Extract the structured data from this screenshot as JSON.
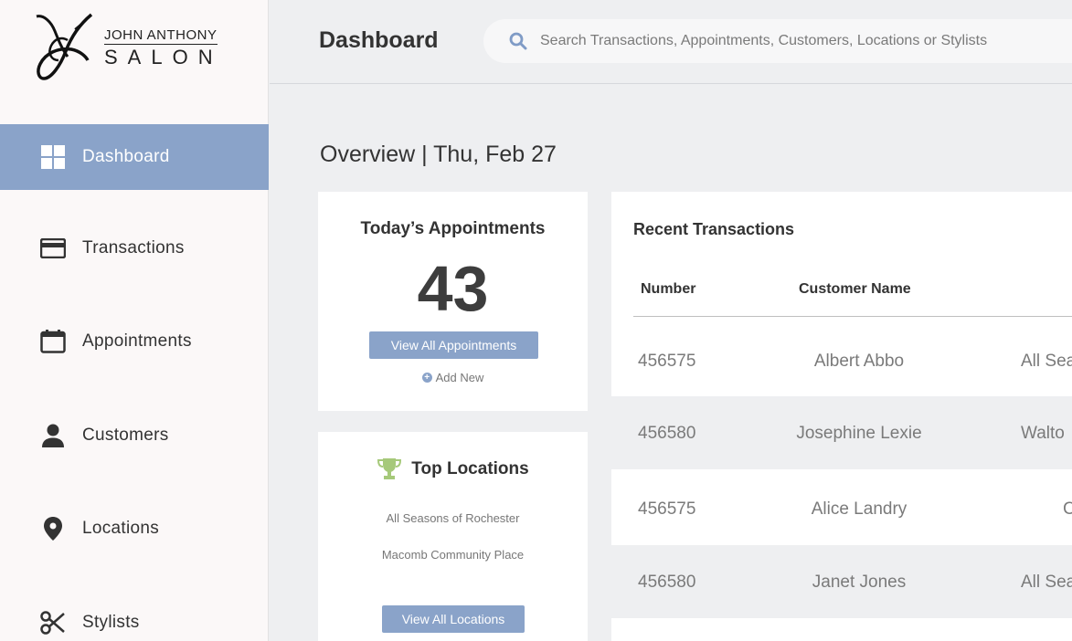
{
  "brand": {
    "line1": "JOHN ANTHONY",
    "line2": "SALON"
  },
  "sidebar": {
    "items": [
      {
        "label": "Dashboard",
        "icon": "grid-icon",
        "active": true
      },
      {
        "label": "Transactions",
        "icon": "credit-card-icon"
      },
      {
        "label": "Appointments",
        "icon": "calendar-icon"
      },
      {
        "label": "Customers",
        "icon": "person-icon"
      },
      {
        "label": "Locations",
        "icon": "map-pin-icon"
      },
      {
        "label": "Stylists",
        "icon": "scissors-icon"
      }
    ]
  },
  "header": {
    "title": "Dashboard",
    "search_placeholder": "Search Transactions, Appointments, Customers, Locations or Stylists"
  },
  "overview": {
    "title": "Overview | Thu, Feb 27"
  },
  "appointments": {
    "title": "Today’s Appointments",
    "count": "43",
    "view_all_label": "View All Appointments",
    "add_new_label": "Add New"
  },
  "top_locations": {
    "title": "Top Locations",
    "items": [
      "All Seasons of Rochester",
      "Macomb Community Place"
    ],
    "view_all_label": "View All Locations"
  },
  "transactions": {
    "title": "Recent Transactions",
    "columns": [
      "Number",
      "Customer Name"
    ],
    "rows": [
      {
        "number": "456575",
        "customer": "Albert Abbo",
        "location": "All Sea"
      },
      {
        "number": "456580",
        "customer": "Josephine Lexie",
        "location": "Walto"
      },
      {
        "number": "456575",
        "customer": "Alice Landry",
        "location": "C"
      },
      {
        "number": "456580",
        "customer": "Janet Jones",
        "location": "All Sea"
      }
    ]
  },
  "colors": {
    "accent": "#8aa3c9",
    "trophy": "#a6c97a"
  }
}
